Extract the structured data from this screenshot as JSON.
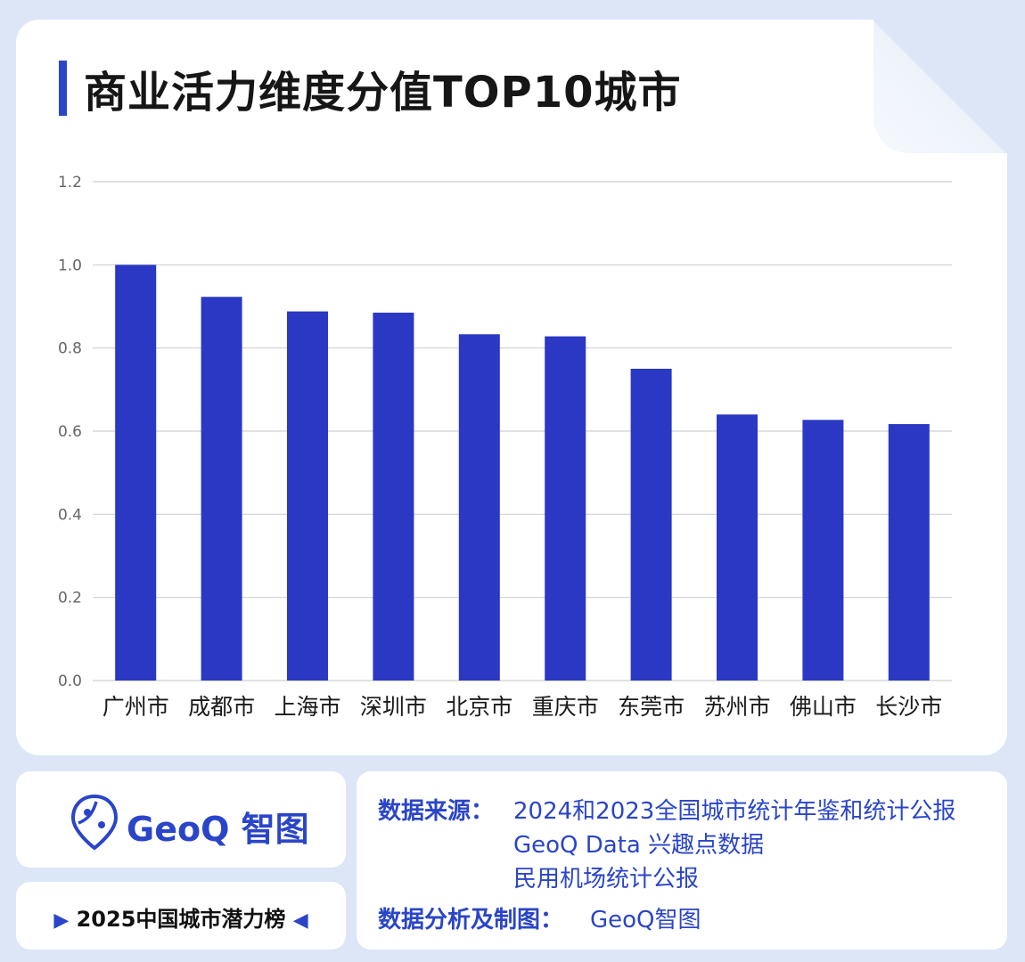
{
  "title": "商业活力维度分值TOP10城市",
  "colors": {
    "bar": "#2a38c4",
    "accent": "#2a45c8",
    "grid": "#cfcfcf"
  },
  "chart_data": {
    "type": "bar",
    "categories": [
      "广州市",
      "成都市",
      "上海市",
      "深圳市",
      "北京市",
      "重庆市",
      "东莞市",
      "苏州市",
      "佛山市",
      "长沙市"
    ],
    "values": [
      1.0,
      0.923,
      0.888,
      0.885,
      0.833,
      0.828,
      0.75,
      0.64,
      0.627,
      0.617
    ],
    "ylim": [
      0,
      1.2
    ],
    "yticks": [
      "0.0",
      "0.2",
      "0.4",
      "0.6",
      "0.8",
      "1.0",
      "1.2"
    ],
    "grid": true,
    "xlabel": "",
    "ylabel": ""
  },
  "footer": {
    "logo_text": "GeoQ 智图",
    "ranking_title": "2025中国城市潜力榜",
    "source_label": "数据来源：",
    "source_lines": [
      "2024和2023全国城市统计年鉴和统计公报",
      "GeoQ Data 兴趣点数据",
      "民用机场统计公报"
    ],
    "author_label": "数据分析及制图：",
    "author_value": "GeoQ智图"
  }
}
